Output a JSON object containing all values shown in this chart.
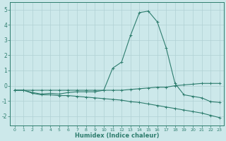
{
  "xlabel": "Humidex (Indice chaleur)",
  "x": [
    0,
    1,
    2,
    3,
    4,
    5,
    6,
    7,
    8,
    9,
    10,
    11,
    12,
    13,
    14,
    15,
    16,
    17,
    18,
    19,
    20,
    21,
    22,
    23
  ],
  "line1": [
    -0.3,
    -0.3,
    -0.3,
    -0.3,
    -0.3,
    -0.3,
    -0.3,
    -0.3,
    -0.3,
    -0.3,
    -0.3,
    -0.3,
    -0.3,
    -0.25,
    -0.2,
    -0.15,
    -0.1,
    -0.1,
    0.0,
    0.05,
    0.1,
    0.15,
    0.15,
    0.15
  ],
  "line2": [
    -0.3,
    -0.3,
    -0.45,
    -0.55,
    -0.5,
    -0.55,
    -0.45,
    -0.4,
    -0.4,
    -0.4,
    -0.3,
    1.15,
    1.55,
    3.3,
    4.8,
    4.9,
    4.2,
    2.5,
    0.15,
    -0.6,
    -0.7,
    -0.8,
    -1.05,
    -1.1
  ],
  "line3": [
    -0.3,
    -0.3,
    -0.5,
    -0.6,
    -0.6,
    -0.65,
    -0.65,
    -0.7,
    -0.75,
    -0.8,
    -0.85,
    -0.9,
    -0.95,
    -1.05,
    -1.1,
    -1.2,
    -1.3,
    -1.4,
    -1.5,
    -1.6,
    -1.7,
    -1.8,
    -1.95,
    -2.1
  ],
  "line_color": "#2e7d6e",
  "bg_color": "#cce8ea",
  "grid_color": "#b0d0d4",
  "ylim": [
    -2.6,
    5.5
  ],
  "xlim": [
    -0.5,
    23.5
  ],
  "yticks": [
    -2,
    -1,
    0,
    1,
    2,
    3,
    4,
    5
  ],
  "xticks": [
    0,
    1,
    2,
    3,
    4,
    5,
    6,
    7,
    8,
    9,
    10,
    11,
    12,
    13,
    14,
    15,
    16,
    17,
    18,
    19,
    20,
    21,
    22,
    23
  ]
}
